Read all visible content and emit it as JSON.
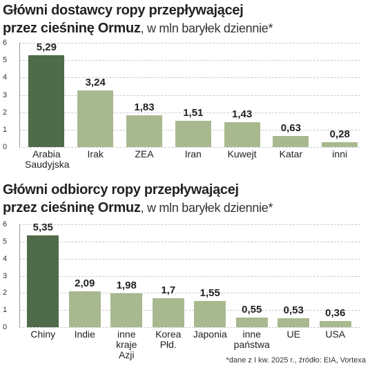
{
  "chart_data": [
    {
      "type": "bar",
      "title": [
        "Główni dostawcy ropy przepływającej",
        "przez cieśninę Ormuz"
      ],
      "subtitle": ", w mln baryłek dziennie*",
      "categories": [
        "Arabia Saudyjska",
        "Irak",
        "ZEA",
        "Iran",
        "Kuwejt",
        "Katar",
        "inni"
      ],
      "values": [
        5.29,
        3.24,
        1.83,
        1.51,
        1.43,
        0.63,
        0.28
      ],
      "value_labels": [
        "5,29",
        "3,24",
        "1,83",
        "1,51",
        "1,43",
        "0,63",
        "0,28"
      ],
      "colors": [
        "#4f6b49",
        "#a9b98f",
        "#a9b98f",
        "#a9b98f",
        "#a9b98f",
        "#a9b98f",
        "#a9b98f"
      ],
      "ylim": [
        0,
        6
      ],
      "yticks": [
        0,
        1,
        2,
        3,
        4,
        5,
        6
      ],
      "grid": true
    },
    {
      "type": "bar",
      "title": [
        "Główni odbiorcy ropy przepływającej",
        "przez cieśninę Ormuz"
      ],
      "subtitle": ", w mln baryłek dziennie*",
      "categories": [
        "Chiny",
        "Indie",
        "inne kraje Azji",
        "Korea Płd.",
        "Japonia",
        "inne państwa",
        "UE",
        "USA"
      ],
      "values": [
        5.35,
        2.09,
        1.98,
        1.7,
        1.55,
        0.55,
        0.53,
        0.36
      ],
      "value_labels": [
        "5,35",
        "2,09",
        "1,98",
        "1,7",
        "1,55",
        "0,55",
        "0,53",
        "0,36"
      ],
      "colors": [
        "#4f6b49",
        "#a9b98f",
        "#a9b98f",
        "#a9b98f",
        "#a9b98f",
        "#a9b98f",
        "#a9b98f",
        "#a9b98f"
      ],
      "ylim": [
        0,
        6
      ],
      "yticks": [
        0,
        1,
        2,
        3,
        4,
        5,
        6
      ],
      "grid": true
    }
  ],
  "note": "*dane z I kw. 2025 r., źródło: EIA, Vortexa"
}
